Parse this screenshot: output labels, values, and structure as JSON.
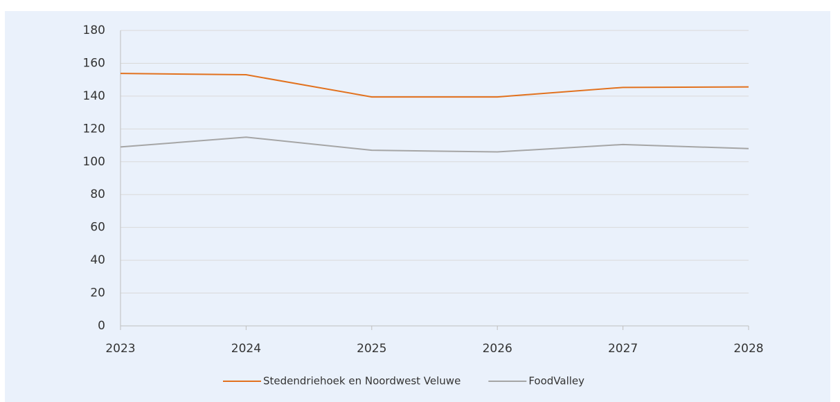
{
  "chart_data": {
    "type": "line",
    "x": [
      2023,
      2024,
      2025,
      2026,
      2027,
      2028
    ],
    "series": [
      {
        "name": "Stedendriehoek en Noordwest Veluwe",
        "color": "#e2711d",
        "values": [
          153.8,
          153,
          139.5,
          139.5,
          145.3,
          145.6
        ]
      },
      {
        "name": "FoodValley",
        "color": "#a5a5a5",
        "values": [
          109,
          115,
          107,
          106,
          110.5,
          108
        ]
      }
    ],
    "xlim": [
      2023,
      2028
    ],
    "xticks": [
      2023,
      2024,
      2025,
      2026,
      2027,
      2028
    ],
    "ylim": [
      0,
      180
    ],
    "yticks": [
      0,
      20,
      40,
      60,
      80,
      100,
      120,
      140,
      160,
      180
    ],
    "grid": true,
    "legend": "bottom"
  }
}
